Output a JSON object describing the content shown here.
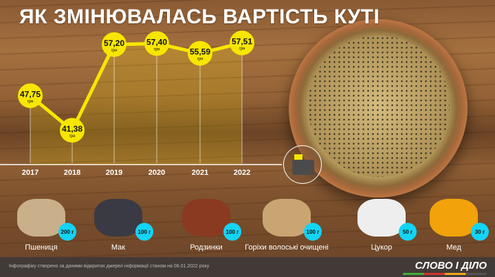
{
  "title": "ЯК ЗМІНЮВАЛАСЬ ВАРТІСТЬ КУТІ",
  "chart_data": {
    "type": "line",
    "categories": [
      "2017",
      "2018",
      "2019",
      "2020",
      "2021",
      "2022"
    ],
    "values": [
      47.75,
      41.38,
      57.2,
      57.4,
      55.59,
      57.51
    ],
    "labels": [
      "47,75",
      "41,38",
      "57,20",
      "57,40",
      "55,59",
      "57,51"
    ],
    "unit": "грн",
    "line_color": "#f7e600"
  },
  "ingredients": [
    {
      "name": "Пшениця",
      "amount": "200 г"
    },
    {
      "name": "Мак",
      "amount": "100 г"
    },
    {
      "name": "Родзинки",
      "amount": "100 г"
    },
    {
      "name": "Горіхи волоські очищені",
      "amount": "100 г"
    },
    {
      "name": "Цукор",
      "amount": "50 г"
    },
    {
      "name": "Мед",
      "amount": "30 г"
    }
  ],
  "footer": {
    "note": "Інфографіку створено за даними відкритих джерел інформації станом на 06.01.2022 року",
    "logo": "СЛОВО І ДІЛО"
  }
}
